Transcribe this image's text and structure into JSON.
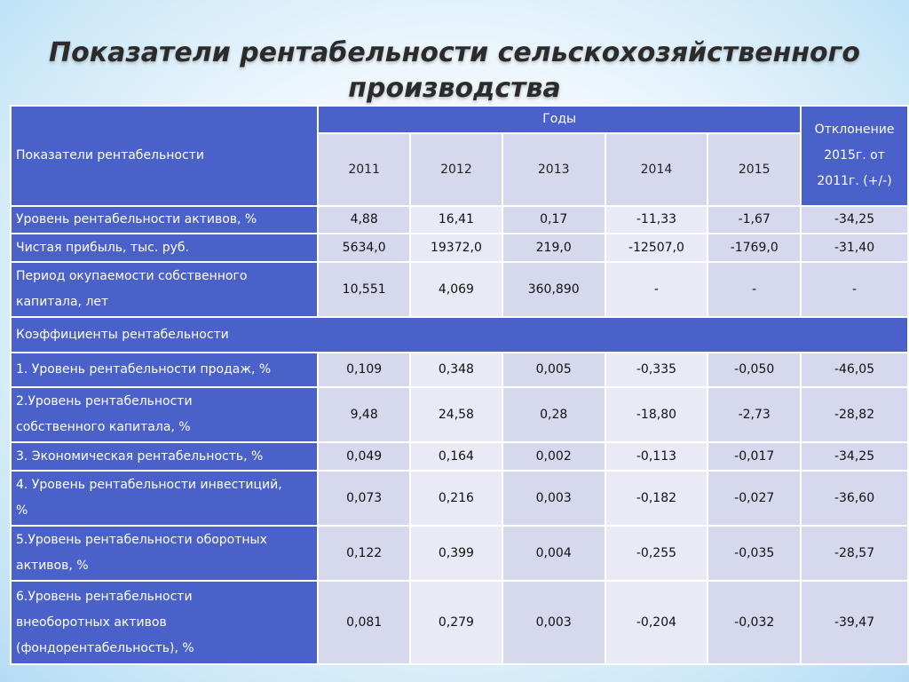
{
  "title": "Показатели рентабельности сельскохозяйственного производства",
  "table": {
    "header_label": "Показатели рентабельности",
    "years_label": "Годы",
    "years": [
      "2011",
      "2012",
      "2013",
      "2014",
      "2015"
    ],
    "deviation_header_lines": [
      "Отклонение",
      "2015г. от",
      "2011г. (+/-)"
    ],
    "section_label": "Коэффициенты рентабельности",
    "rows_top": [
      {
        "label_lines": [
          "Уровень рентабельности активов, %"
        ],
        "values": [
          "4,88",
          "16,41",
          "0,17",
          "-11,33",
          "-1,67",
          "-34,25"
        ]
      },
      {
        "label_lines": [
          "Чистая прибыль, тыс. руб."
        ],
        "values": [
          "5634,0",
          "19372,0",
          "219,0",
          "-12507,0",
          "-1769,0",
          "-31,40"
        ]
      },
      {
        "label_lines": [
          "Период окупаемости собственного",
          "капитала, лет"
        ],
        "values": [
          "10,551",
          "4,069",
          "360,890",
          "-",
          "-",
          "-"
        ]
      }
    ],
    "rows_bottom": [
      {
        "label_lines": [
          "1. Уровень рентабельности продаж, %"
        ],
        "values": [
          "0,109",
          "0,348",
          "0,005",
          "-0,335",
          "-0,050",
          "-46,05"
        ]
      },
      {
        "label_lines": [
          "2.Уровень рентабельности",
          "собственного капитала, %"
        ],
        "values": [
          "9,48",
          "24,58",
          "0,28",
          "-18,80",
          "-2,73",
          "-28,82"
        ]
      },
      {
        "label_lines": [
          "3. Экономическая рентабельность, %"
        ],
        "values": [
          "0,049",
          "0,164",
          "0,002",
          "-0,113",
          "-0,017",
          "-34,25"
        ]
      },
      {
        "label_lines": [
          "4. Уровень рентабельности инвестиций,",
          "%"
        ],
        "values": [
          "0,073",
          "0,216",
          "0,003",
          "-0,182",
          "-0,027",
          "-36,60"
        ]
      },
      {
        "label_lines": [
          "5.Уровень рентабельности оборотных",
          "активов, %"
        ],
        "values": [
          "0,122",
          "0,399",
          "0,004",
          "-0,255",
          "-0,035",
          "-28,57"
        ]
      },
      {
        "label_lines": [
          "6.Уровень рентабельности",
          "внеоборотных активов",
          "(фондорентабельность), %"
        ],
        "values": [
          "0,081",
          "0,279",
          "0,003",
          "-0,204",
          "-0,032",
          "-39,47"
        ]
      }
    ]
  }
}
